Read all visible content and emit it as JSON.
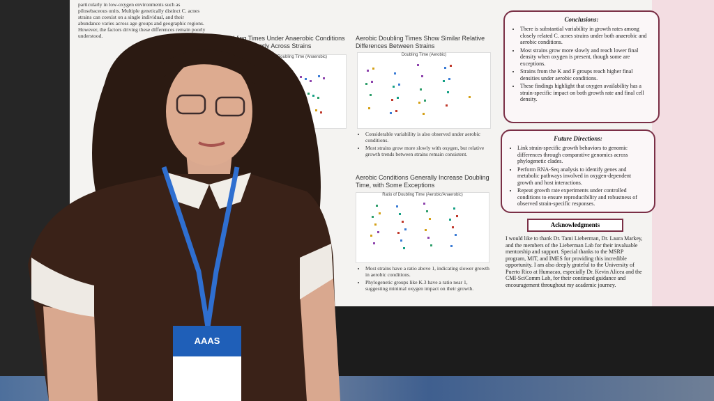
{
  "poster": {
    "intro": "particularly in low-oxygen environments such as pilosebaceous units. Multiple genetically distinct C. acnes strains can coexist on a single individual, and their abundance varies across age groups and geographic regions. However, the factors driving these differences remain poorly understood.",
    "panels": [
      {
        "title": "Doubling Times Under Anaerobic Conditions Vary Significantly Across Strains",
        "chart_title": "Doubling Time (Anaerobic)"
      },
      {
        "title": "Aerobic Doubling Times Show Similar Relative Differences Between Strains",
        "chart_title": "Doubling Time (Aerobic)",
        "bullets": [
          "Considerable variability is also observed under aerobic conditions.",
          "Most strains grow more slowly with oxygen, but relative growth trends between strains remain consistent."
        ]
      },
      {
        "title": "Aerobic Conditions Generally Increase Doubling Time, with Some Exceptions",
        "chart_title": "Ratio of Doubling Time (Aerobic/Anaerobic)",
        "bullets": [
          "Most strains have a ratio above 1, indicating slower growth in aerobic conditions.",
          "Phylogenetic groups like K.3 have a ratio near 1, suggesting minimal oxygen impact on their growth."
        ]
      }
    ],
    "conclusions": {
      "title": "Conclusions:",
      "bullets": [
        "There is substantial variability in growth rates among closely related C. acnes strains under both anaerobic and aerobic conditions.",
        "Most strains grow more slowly and reach lower final density when oxygen is present, though some are exceptions.",
        "Strains from the K and F groups reach higher final densities under aerobic conditions.",
        "These findings highlight that oxygen availability has a strain-specific impact on both growth rate and final cell density."
      ]
    },
    "future": {
      "title": "Future Directions:",
      "bullets": [
        "Link strain-specific growth behaviors to genomic differences through comparative genomics across phylogenetic clades.",
        "Perform RNA-Seq analysis to identify genes and metabolic pathways involved in oxygen-dependent growth and host interactions.",
        "Repeat growth rate experiments under controlled conditions to ensure reproducibility and robustness of observed strain-specific responses."
      ]
    },
    "acknowledgments": {
      "title": "Acknowledgments",
      "text": "I would like to thank Dr. Tami Lieberman, Dr. Laura Markey, and the members of the Lieberman Lab for their invaluable mentorship and support. Special thanks to the MSRP program, MIT, and IMES for providing this incredible opportunity. I am also deeply grateful to the University of Puerto Rico at Humacao, especially Dr. Kevin Alicea and the CMI-SciComm Lab, for their continued guidance and encouragement throughout my academic journey."
    }
  },
  "badge": {
    "org": "AAAS"
  }
}
